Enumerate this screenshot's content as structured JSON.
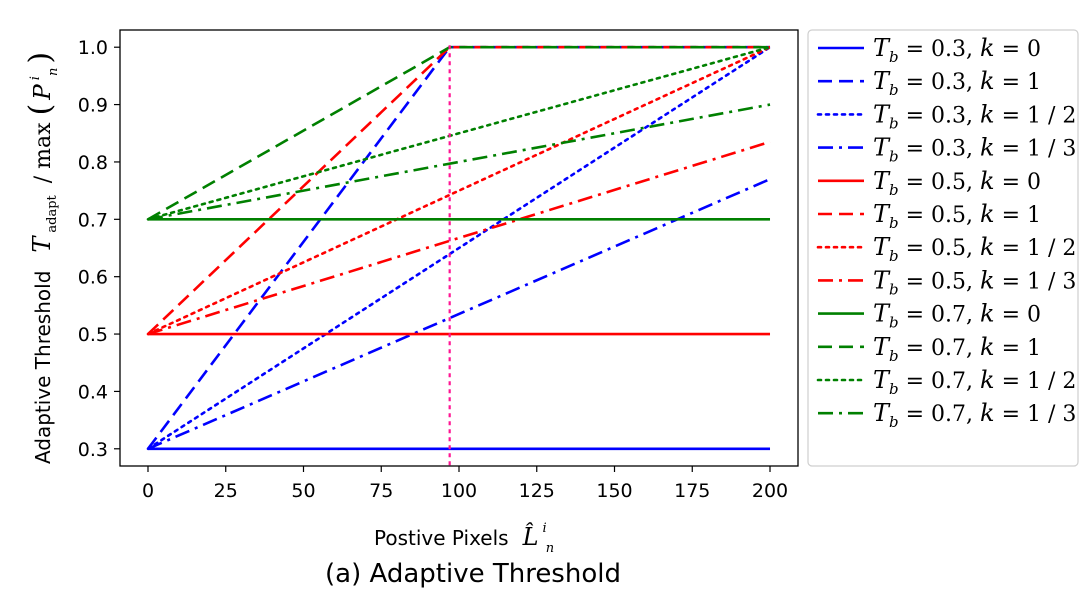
{
  "chart_data": {
    "type": "line",
    "caption": "(a) Adaptive Threshold",
    "xlabel": {
      "text": "Postive Pixels",
      "symbol": "L̂",
      "sup": "i",
      "sub": "n"
    },
    "ylabel": {
      "text": "Adaptive Threshold",
      "symbol": "T",
      "sub": "adapt",
      "divider": "/ max",
      "arg": "P",
      "arg_sup": "i",
      "arg_sub": "n"
    },
    "xlim": [
      -9,
      209
    ],
    "ylim": [
      0.27,
      1.03
    ],
    "xticks": [
      "0",
      "25",
      "50",
      "75",
      "100",
      "125",
      "150",
      "175",
      "200"
    ],
    "yticks": [
      "0.3",
      "0.4",
      "0.5",
      "0.6",
      "0.7",
      "0.8",
      "0.9",
      "1.0"
    ],
    "vline": {
      "x": 97,
      "color": "#ff1493"
    },
    "series": [
      {
        "name": "T_b = 0.3, k = 0",
        "legend": {
          "tb": "0.3",
          "k": "0"
        },
        "color": "#0000ff",
        "style": "solid",
        "x": [
          0,
          200
        ],
        "y": [
          0.3,
          0.3
        ]
      },
      {
        "name": "T_b = 0.3, k = 1",
        "legend": {
          "tb": "0.3",
          "k": "1"
        },
        "color": "#0000ff",
        "style": "dashed",
        "x": [
          0,
          97,
          200
        ],
        "y": [
          0.3,
          1.0,
          1.0
        ]
      },
      {
        "name": "T_b = 0.3, k = 1/2",
        "legend": {
          "tb": "0.3",
          "k": "1 / 2"
        },
        "color": "#0000ff",
        "style": "dotted",
        "x": [
          0,
          200
        ],
        "y": [
          0.3,
          1.0
        ]
      },
      {
        "name": "T_b = 0.3, k = 1/3",
        "legend": {
          "tb": "0.3",
          "k": "1 / 3"
        },
        "color": "#0000ff",
        "style": "dashdot",
        "x": [
          0,
          200
        ],
        "y": [
          0.3,
          0.77
        ]
      },
      {
        "name": "T_b = 0.5, k = 0",
        "legend": {
          "tb": "0.5",
          "k": "0"
        },
        "color": "#ff0000",
        "style": "solid",
        "x": [
          0,
          200
        ],
        "y": [
          0.5,
          0.5
        ]
      },
      {
        "name": "T_b = 0.5, k = 1",
        "legend": {
          "tb": "0.5",
          "k": "1"
        },
        "color": "#ff0000",
        "style": "dashed",
        "x": [
          0,
          97,
          200
        ],
        "y": [
          0.5,
          1.0,
          1.0
        ]
      },
      {
        "name": "T_b = 0.5, k = 1/2",
        "legend": {
          "tb": "0.5",
          "k": "1 / 2"
        },
        "color": "#ff0000",
        "style": "dotted",
        "x": [
          0,
          200
        ],
        "y": [
          0.5,
          1.0
        ]
      },
      {
        "name": "T_b = 0.5, k = 1/3",
        "legend": {
          "tb": "0.5",
          "k": "1 / 3"
        },
        "color": "#ff0000",
        "style": "dashdot",
        "x": [
          0,
          200
        ],
        "y": [
          0.5,
          0.835
        ]
      },
      {
        "name": "T_b = 0.7, k = 0",
        "legend": {
          "tb": "0.7",
          "k": "0"
        },
        "color": "#008000",
        "style": "solid",
        "x": [
          0,
          200
        ],
        "y": [
          0.7,
          0.7
        ]
      },
      {
        "name": "T_b = 0.7, k = 1",
        "legend": {
          "tb": "0.7",
          "k": "1"
        },
        "color": "#008000",
        "style": "dashed",
        "x": [
          0,
          97,
          200
        ],
        "y": [
          0.7,
          1.0,
          1.0
        ]
      },
      {
        "name": "T_b = 0.7, k = 1/2",
        "legend": {
          "tb": "0.7",
          "k": "1 / 2"
        },
        "color": "#008000",
        "style": "dotted",
        "x": [
          0,
          200
        ],
        "y": [
          0.7,
          1.0
        ]
      },
      {
        "name": "T_b = 0.7, k = 1/3",
        "legend": {
          "tb": "0.7",
          "k": "1 / 3"
        },
        "color": "#008000",
        "style": "dashdot",
        "x": [
          0,
          200
        ],
        "y": [
          0.7,
          0.9
        ]
      }
    ],
    "grid": false,
    "legend_position": "outside-right"
  }
}
